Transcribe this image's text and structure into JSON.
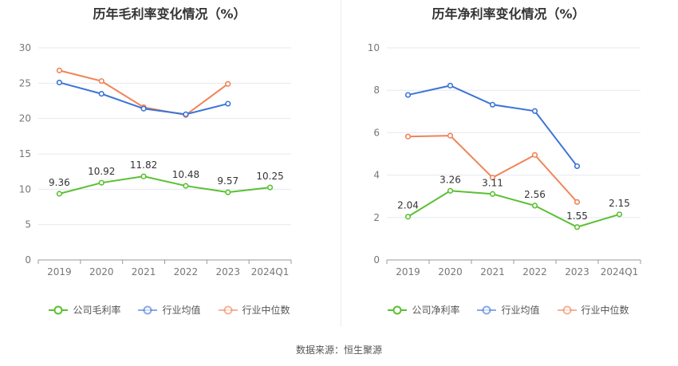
{
  "chart_data": [
    {
      "type": "line",
      "title": "历年毛利率变化情况（%）",
      "categories": [
        "2019",
        "2020",
        "2021",
        "2022",
        "2023",
        "2024Q1"
      ],
      "ylim": [
        0,
        30
      ],
      "yticks": [
        0,
        5,
        10,
        15,
        20,
        25,
        30
      ],
      "grid": true,
      "legend_position": "bottom",
      "series": [
        {
          "name": "公司毛利率",
          "color": "#5ac032",
          "labels": true,
          "values": [
            9.36,
            10.92,
            11.82,
            10.48,
            9.57,
            10.25
          ]
        },
        {
          "name": "行业均值",
          "color": "#3b74d8",
          "labels": false,
          "values": [
            25.1,
            23.5,
            21.4,
            20.6,
            22.1,
            null
          ]
        },
        {
          "name": "行业中位数",
          "color": "#ef8457",
          "labels": false,
          "values": [
            26.8,
            25.3,
            21.6,
            20.5,
            24.9,
            null
          ]
        }
      ]
    },
    {
      "type": "line",
      "title": "历年净利率变化情况（%）",
      "categories": [
        "2019",
        "2020",
        "2021",
        "2022",
        "2023",
        "2024Q1"
      ],
      "ylim": [
        0,
        10
      ],
      "yticks": [
        0,
        2,
        4,
        6,
        8,
        10
      ],
      "grid": true,
      "legend_position": "bottom",
      "series": [
        {
          "name": "公司净利率",
          "color": "#5ac032",
          "labels": true,
          "values": [
            2.04,
            3.26,
            3.11,
            2.56,
            1.55,
            2.15
          ]
        },
        {
          "name": "行业均值",
          "color": "#3b74d8",
          "labels": false,
          "values": [
            7.78,
            8.22,
            7.32,
            7.02,
            4.42,
            null
          ]
        },
        {
          "name": "行业中位数",
          "color": "#ef8457",
          "labels": false,
          "values": [
            5.82,
            5.86,
            3.88,
            4.95,
            2.73,
            null
          ]
        }
      ]
    }
  ],
  "source": "数据来源：恒生聚源"
}
